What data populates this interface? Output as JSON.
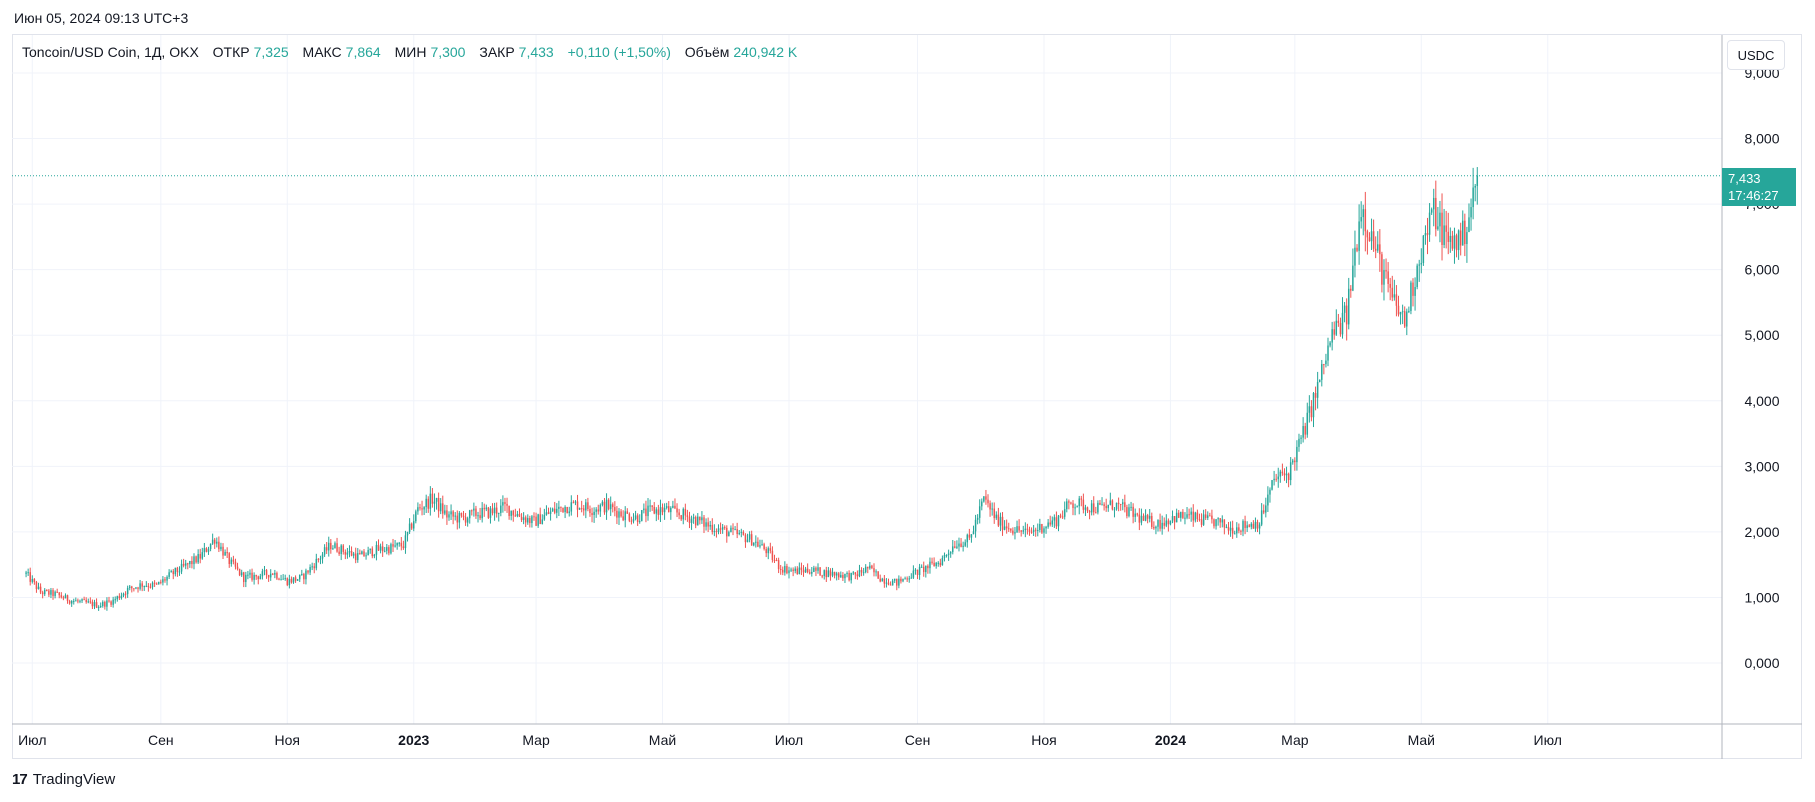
{
  "header": {
    "datetime": "Июн 05, 2024 09:13 UTC+3"
  },
  "legend": {
    "title": "Toncoin/USD Coin, 1Д, OKX",
    "open_label": "ОТКР",
    "open_value": "7,325",
    "high_label": "МАКС",
    "high_value": "7,864",
    "low_label": "МИН",
    "low_value": "7,300",
    "close_label": "ЗАКР",
    "close_value": "7,433",
    "change": "+0,110 (+1,50%)",
    "volume_label": "Объём",
    "volume_value": "240,942 K"
  },
  "currency_button": "USDC",
  "price_tag": {
    "price": "7,433",
    "countdown": "17:46:27"
  },
  "branding": {
    "logo_text": "TradingView"
  },
  "colors": {
    "up": "#26a69a",
    "down": "#ef5350",
    "grid": "#f0f3fa",
    "text": "#131722"
  },
  "chart_data": {
    "type": "candlestick",
    "title": "Toncoin/USD Coin, 1Д, OKX",
    "ylim": [
      -0.85,
      9.25
    ],
    "y_ticks": [
      "0,000",
      "1,000",
      "2,000",
      "3,000",
      "4,000",
      "5,000",
      "6,000",
      "7,000",
      "8,000",
      "9,000"
    ],
    "y_tick_values": [
      0,
      1,
      2,
      3,
      4,
      5,
      6,
      7,
      8,
      9
    ],
    "x_range": [
      "2022-06-27",
      "2024-08-28"
    ],
    "x_ticks": [
      {
        "label": "Июл",
        "date": "2022-07-01",
        "bold": false
      },
      {
        "label": "Сен",
        "date": "2022-09-01",
        "bold": false
      },
      {
        "label": "Ноя",
        "date": "2022-11-01",
        "bold": false
      },
      {
        "label": "2023",
        "date": "2023-01-01",
        "bold": true
      },
      {
        "label": "Мар",
        "date": "2023-03-01",
        "bold": false
      },
      {
        "label": "Май",
        "date": "2023-05-01",
        "bold": false
      },
      {
        "label": "Июл",
        "date": "2023-07-01",
        "bold": false
      },
      {
        "label": "Сен",
        "date": "2023-09-01",
        "bold": false
      },
      {
        "label": "Ноя",
        "date": "2023-11-01",
        "bold": false
      },
      {
        "label": "2024",
        "date": "2024-01-01",
        "bold": true
      },
      {
        "label": "Мар",
        "date": "2024-03-01",
        "bold": false
      },
      {
        "label": "Май",
        "date": "2024-05-01",
        "bold": false
      },
      {
        "label": "Июл",
        "date": "2024-07-01",
        "bold": false
      }
    ],
    "last_price": 7.433,
    "close_series_start": "2022-06-28",
    "close_series_interval": "weekly",
    "closes": [
      1.36,
      1.08,
      1.05,
      0.96,
      0.92,
      0.88,
      0.95,
      1.12,
      1.2,
      1.18,
      1.35,
      1.48,
      1.62,
      1.9,
      1.55,
      1.3,
      1.33,
      1.38,
      1.25,
      1.3,
      1.55,
      1.8,
      1.7,
      1.62,
      1.72,
      1.75,
      1.8,
      2.35,
      2.5,
      2.25,
      2.2,
      2.28,
      2.3,
      2.38,
      2.25,
      2.15,
      2.28,
      2.38,
      2.42,
      2.35,
      2.4,
      2.28,
      2.22,
      2.32,
      2.34,
      2.28,
      2.2,
      2.1,
      2.02,
      1.96,
      1.88,
      1.72,
      1.45,
      1.4,
      1.42,
      1.38,
      1.35,
      1.32,
      1.45,
      1.28,
      1.22,
      1.35,
      1.45,
      1.55,
      1.82,
      1.88,
      2.5,
      2.15,
      2.05,
      1.98,
      2.08,
      2.18,
      2.45,
      2.4,
      2.36,
      2.42,
      2.3,
      2.18,
      2.12,
      2.22,
      2.24,
      2.18,
      2.15,
      2.05,
      2.1,
      2.15,
      2.8,
      2.9,
      3.5,
      4.2,
      5.0,
      5.3,
      7.0,
      6.3,
      5.6,
      5.2,
      6.2,
      6.9,
      6.4,
      6.5,
      7.33
    ]
  }
}
